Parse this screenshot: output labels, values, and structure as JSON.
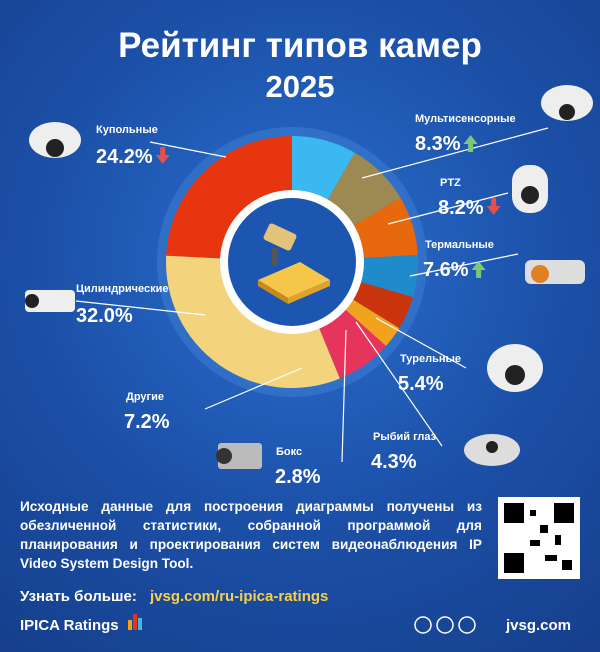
{
  "chart_data": {
    "type": "donut",
    "title": "Рейтинг типов камер",
    "subtitle": "2025",
    "categories": [
      "Мультисенсорные",
      "PTZ",
      "Термальные",
      "Турельные",
      "Рыбий глаз",
      "Бокс",
      "Другие",
      "Цилиндрические",
      "Купольные"
    ],
    "values": [
      8.3,
      8.2,
      7.6,
      5.4,
      4.3,
      2.8,
      7.2,
      32.0,
      24.2
    ],
    "value_labels": [
      "8.3%",
      "8.2%",
      "7.6%",
      "5.4%",
      "4.3%",
      "2.8%",
      "7.2%",
      "32.0%",
      "24.2%"
    ],
    "colors": [
      "#3bb8f0",
      "#9c8a52",
      "#e8680e",
      "#1f8bca",
      "#c9340c",
      "#f2a31e",
      "#e6345c",
      "#f3d37c",
      "#e6350f"
    ],
    "trends": [
      "up",
      "down",
      "up",
      null,
      null,
      null,
      null,
      null,
      "down"
    ]
  },
  "footer": {
    "description": "Исходные данные для построения диаграммы получены из обезличенной статистики, собранной программой для планирования и проектирования систем видеонаблюдения IP Video System Design Tool.",
    "more_label": "Узнать больше:",
    "link": "jvsg.com/ru-ipica-ratings",
    "brand": "IPICA Ratings",
    "site": "jvsg.com"
  }
}
